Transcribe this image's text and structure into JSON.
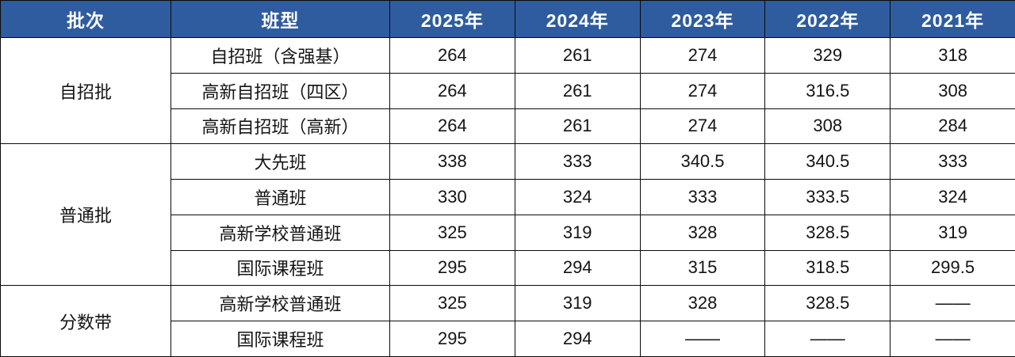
{
  "chart_data": {
    "type": "table",
    "title": "",
    "columns": [
      "批次",
      "班型",
      "2025年",
      "2024年",
      "2023年",
      "2022年",
      "2021年"
    ],
    "groups": [
      {
        "batch": "自招批",
        "rows": [
          {
            "type": "自招班（含强基）",
            "values": [
              "264",
              "261",
              "274",
              "329",
              "318"
            ]
          },
          {
            "type": "高新自招班（四区）",
            "values": [
              "264",
              "261",
              "274",
              "316.5",
              "308"
            ]
          },
          {
            "type": "高新自招班（高新）",
            "values": [
              "264",
              "261",
              "274",
              "308",
              "284"
            ]
          }
        ]
      },
      {
        "batch": "普通批",
        "rows": [
          {
            "type": "大先班",
            "values": [
              "338",
              "333",
              "340.5",
              "340.5",
              "333"
            ]
          },
          {
            "type": "普通班",
            "values": [
              "330",
              "324",
              "333",
              "333.5",
              "324"
            ]
          },
          {
            "type": "高新学校普通班",
            "values": [
              "325",
              "319",
              "328",
              "328.5",
              "319"
            ]
          },
          {
            "type": "国际课程班",
            "values": [
              "295",
              "294",
              "315",
              "318.5",
              "299.5"
            ]
          }
        ]
      },
      {
        "batch": "分数带",
        "rows": [
          {
            "type": "高新学校普通班",
            "values": [
              "325",
              "319",
              "328",
              "328.5",
              "——"
            ]
          },
          {
            "type": "国际课程班",
            "values": [
              "295",
              "294",
              "——",
              "——",
              "——"
            ]
          }
        ]
      }
    ],
    "colors": {
      "header_bg": "#2e5c9e",
      "header_text": "#ffffff",
      "border": "#0a0a0a",
      "body_text": "#141414"
    }
  }
}
